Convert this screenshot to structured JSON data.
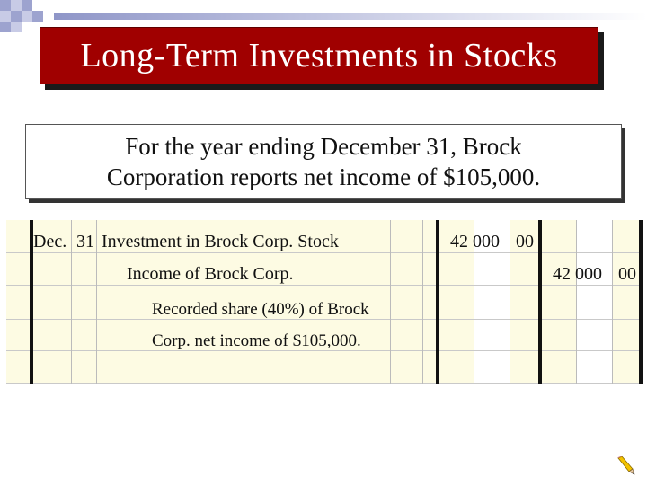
{
  "slide": {
    "title": "Long-Term Investments in Stocks",
    "info_lines": [
      "For the year ending December 31, Brock",
      "Corporation reports net income of $105,000."
    ]
  },
  "journal": {
    "date_month": "Dec.",
    "date_day": "31",
    "debit_account": "Investment in Brock Corp. Stock",
    "debit_amount": "42 000",
    "debit_cents": "00",
    "credit_account": "Income of Brock Corp.",
    "credit_amount": "42 000",
    "credit_cents": "00",
    "explanation_lines": [
      "Recorded share (40%) of Brock",
      "Corp. net income of $105,000."
    ]
  },
  "colors": {
    "title_bg": "#a00000",
    "journal_bg": "#fdfbe3"
  },
  "icons": [
    "pencil-icon"
  ]
}
